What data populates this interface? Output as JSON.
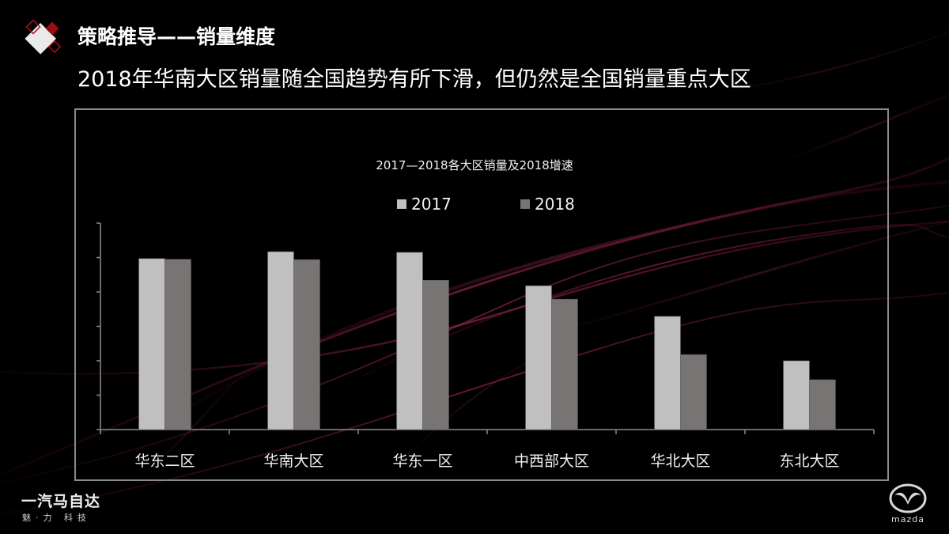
{
  "header": {
    "title": "策略推导——销量维度",
    "subtitle": "2018年华南大区销量随全国趋势有所下滑，但仍然是全国销量重点大区"
  },
  "chart": {
    "title": "2017—2018各大区销量及2018增速",
    "legend": [
      {
        "label": "2017",
        "color": "#c0c0c0"
      },
      {
        "label": "2018",
        "color": "#787474"
      }
    ],
    "categories": [
      "华东二区",
      "华南大区",
      "华东一区",
      "中西部大区",
      "华北大区",
      "东北大区"
    ]
  },
  "chart_data": {
    "type": "bar",
    "title": "2017—2018各大区销量及2018增速",
    "categories": [
      "华东二区",
      "华南大区",
      "华东一区",
      "中西部大区",
      "华北大区",
      "东北大区"
    ],
    "series": [
      {
        "name": "2017",
        "color": "#c0c0c0",
        "values": [
          49.7,
          51.7,
          51.5,
          41.8,
          32.9,
          20.0
        ]
      },
      {
        "name": "2018",
        "color": "#787474",
        "values": [
          49.5,
          49.4,
          43.4,
          37.9,
          21.8,
          14.5
        ]
      }
    ],
    "xlabel": "",
    "ylabel": "",
    "ylim": [
      0,
      60
    ],
    "y_tick_count": 7,
    "y_tick_labels_visible": false,
    "grid": false,
    "legend_position": "top"
  },
  "footer": {
    "brand": "一汽马自达",
    "tagline": "魅·力 科技",
    "logo_text": "mazda"
  }
}
